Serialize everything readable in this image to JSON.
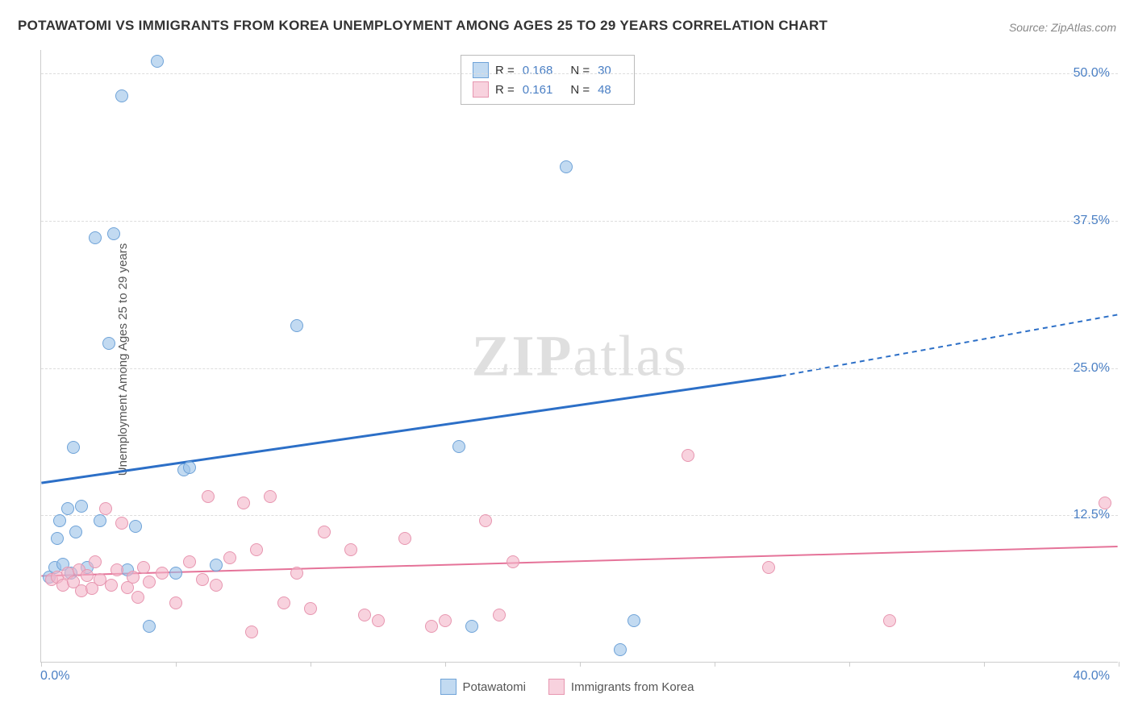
{
  "title": "POTAWATOMI VS IMMIGRANTS FROM KOREA UNEMPLOYMENT AMONG AGES 25 TO 29 YEARS CORRELATION CHART",
  "source": "Source: ZipAtlas.com",
  "y_axis_label": "Unemployment Among Ages 25 to 29 years",
  "watermark": {
    "bold": "ZIP",
    "light": "atlas"
  },
  "chart": {
    "type": "scatter",
    "background_color": "#ffffff",
    "grid_color": "#dddddd",
    "axis_color": "#cccccc",
    "label_color": "#4a7fc4",
    "xlim": [
      0,
      40
    ],
    "ylim": [
      0,
      52
    ],
    "x_ticks": [
      0,
      5,
      10,
      15,
      20,
      25,
      30,
      35,
      40
    ],
    "x_tick_labels": {
      "left": "0.0%",
      "right": "40.0%"
    },
    "y_gridlines": [
      12.5,
      25.0,
      37.5,
      50.0
    ],
    "y_tick_labels": [
      "12.5%",
      "25.0%",
      "37.5%",
      "50.0%"
    ],
    "marker_size": 16,
    "series": [
      {
        "name": "Potawatomi",
        "color_fill": "rgba(154,193,232,0.6)",
        "color_stroke": "#6fa3d8",
        "trend_color": "#2c6fc7",
        "R": 0.168,
        "N": 30,
        "trend": {
          "x1": 0,
          "y1": 15.2,
          "x2_solid": 27.5,
          "y2_solid": 24.3,
          "x2_dash": 40,
          "y2_dash": 29.5,
          "width": 3
        },
        "points": [
          [
            0.3,
            7.2
          ],
          [
            0.5,
            8.0
          ],
          [
            0.6,
            10.5
          ],
          [
            0.7,
            12.0
          ],
          [
            0.8,
            8.3
          ],
          [
            1.0,
            13.0
          ],
          [
            1.1,
            7.5
          ],
          [
            1.2,
            18.2
          ],
          [
            1.3,
            11.0
          ],
          [
            1.5,
            13.2
          ],
          [
            1.7,
            8.0
          ],
          [
            2.0,
            36.0
          ],
          [
            2.2,
            12.0
          ],
          [
            2.5,
            27.0
          ],
          [
            2.7,
            36.3
          ],
          [
            3.0,
            48.0
          ],
          [
            3.2,
            7.8
          ],
          [
            3.5,
            11.5
          ],
          [
            4.0,
            3.0
          ],
          [
            4.3,
            51.0
          ],
          [
            5.0,
            7.5
          ],
          [
            5.3,
            16.3
          ],
          [
            6.5,
            8.2
          ],
          [
            5.5,
            16.5
          ],
          [
            9.5,
            28.5
          ],
          [
            15.5,
            18.3
          ],
          [
            16.0,
            3.0
          ],
          [
            19.5,
            42.0
          ],
          [
            21.5,
            1.0
          ],
          [
            22.0,
            3.5
          ]
        ]
      },
      {
        "name": "Immigrants from Korea",
        "color_fill": "rgba(244,180,200,0.6)",
        "color_stroke": "#e796b0",
        "trend_color": "#e57399",
        "R": 0.161,
        "N": 48,
        "trend": {
          "x1": 0,
          "y1": 7.3,
          "x2_solid": 40,
          "y2_solid": 9.8,
          "x2_dash": 40,
          "y2_dash": 9.8,
          "width": 2
        },
        "points": [
          [
            0.4,
            7.0
          ],
          [
            0.6,
            7.2
          ],
          [
            0.8,
            6.5
          ],
          [
            1.0,
            7.5
          ],
          [
            1.2,
            6.8
          ],
          [
            1.4,
            7.8
          ],
          [
            1.5,
            6.0
          ],
          [
            1.7,
            7.3
          ],
          [
            1.9,
            6.2
          ],
          [
            2.0,
            8.5
          ],
          [
            2.2,
            7.0
          ],
          [
            2.4,
            13.0
          ],
          [
            2.6,
            6.5
          ],
          [
            2.8,
            7.8
          ],
          [
            3.0,
            11.8
          ],
          [
            3.2,
            6.3
          ],
          [
            3.4,
            7.2
          ],
          [
            3.6,
            5.5
          ],
          [
            3.8,
            8.0
          ],
          [
            4.0,
            6.8
          ],
          [
            4.5,
            7.5
          ],
          [
            5.0,
            5.0
          ],
          [
            5.5,
            8.5
          ],
          [
            6.0,
            7.0
          ],
          [
            6.2,
            14.0
          ],
          [
            6.5,
            6.5
          ],
          [
            7.0,
            8.8
          ],
          [
            7.5,
            13.5
          ],
          [
            7.8,
            2.5
          ],
          [
            8.0,
            9.5
          ],
          [
            8.5,
            14.0
          ],
          [
            9.0,
            5.0
          ],
          [
            9.5,
            7.5
          ],
          [
            10.0,
            4.5
          ],
          [
            10.5,
            11.0
          ],
          [
            11.5,
            9.5
          ],
          [
            12.0,
            4.0
          ],
          [
            12.5,
            3.5
          ],
          [
            13.5,
            10.5
          ],
          [
            14.5,
            3.0
          ],
          [
            15.0,
            3.5
          ],
          [
            16.5,
            12.0
          ],
          [
            17.5,
            8.5
          ],
          [
            17.0,
            4.0
          ],
          [
            24.0,
            17.5
          ],
          [
            27.0,
            8.0
          ],
          [
            31.5,
            3.5
          ],
          [
            39.5,
            13.5
          ]
        ]
      }
    ]
  },
  "legend_box": {
    "rows": [
      {
        "swatch_fill": "rgba(154,193,232,0.6)",
        "swatch_border": "#6fa3d8",
        "r_label": "R =",
        "r_val": "0.168",
        "n_label": "N =",
        "n_val": "30"
      },
      {
        "swatch_fill": "rgba(244,180,200,0.6)",
        "swatch_border": "#e796b0",
        "r_label": "R =",
        "r_val": "0.161",
        "n_label": "N =",
        "n_val": "48"
      }
    ]
  },
  "bottom_legend": [
    {
      "swatch_fill": "rgba(154,193,232,0.6)",
      "swatch_border": "#6fa3d8",
      "label": "Potawatomi"
    },
    {
      "swatch_fill": "rgba(244,180,200,0.6)",
      "swatch_border": "#e796b0",
      "label": "Immigrants from Korea"
    }
  ]
}
